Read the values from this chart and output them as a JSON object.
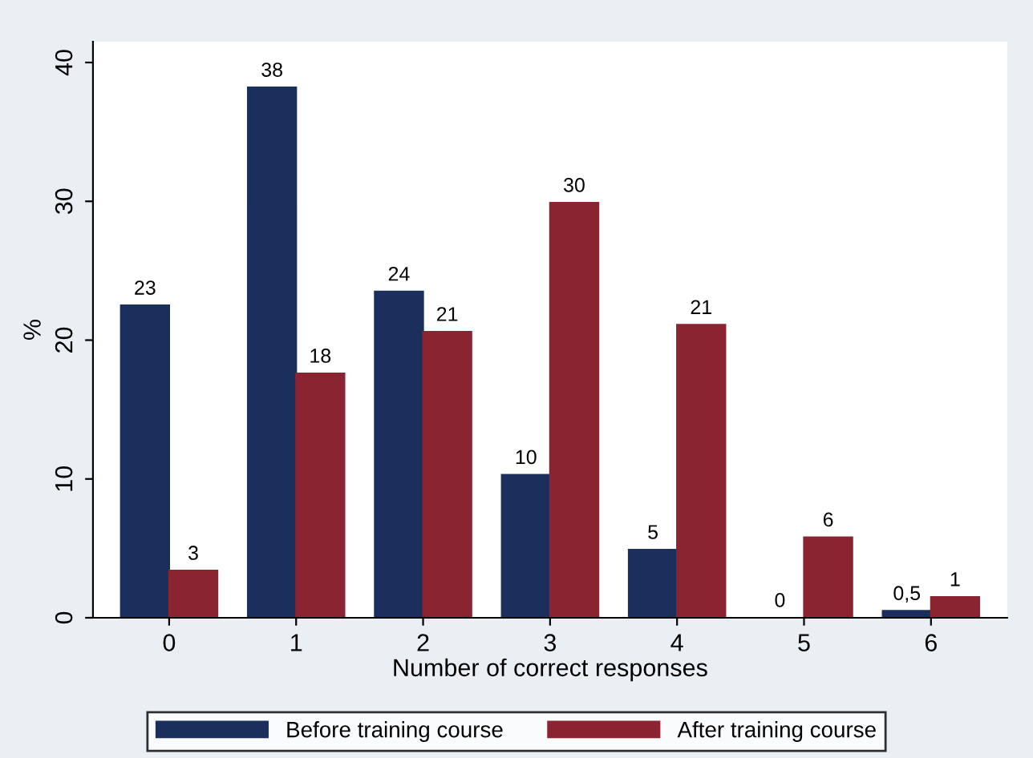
{
  "chart_data": {
    "type": "bar",
    "xlabel": "Number of correct responses",
    "ylabel": "%",
    "categories": [
      "0",
      "1",
      "2",
      "3",
      "4",
      "5",
      "6"
    ],
    "series": [
      {
        "name": "Before training course",
        "color": "#1b2f5c",
        "values": [
          22.5,
          38.2,
          23.5,
          10.3,
          4.9,
          0,
          0.5
        ],
        "value_labels": [
          "23",
          "38",
          "24",
          "10",
          "5",
          "0",
          "0,5"
        ]
      },
      {
        "name": "After training course",
        "color": "#8a2430",
        "values": [
          3.4,
          17.6,
          20.6,
          29.9,
          21.1,
          5.8,
          1.5
        ],
        "value_labels": [
          "3",
          "18",
          "21",
          "30",
          "21",
          "6",
          "1"
        ]
      }
    ],
    "ylim": [
      0,
      41.5
    ],
    "yticks": [
      0,
      10,
      20,
      30,
      40
    ],
    "grid": false,
    "legend": "bottom"
  }
}
